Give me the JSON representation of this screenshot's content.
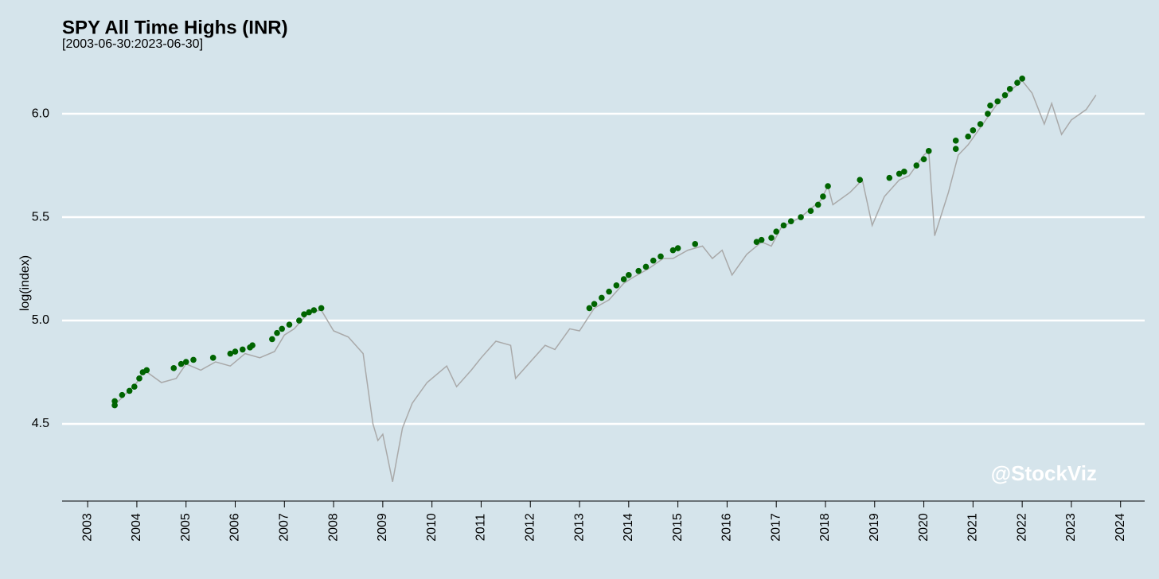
{
  "chart_data": {
    "type": "line",
    "title": "SPY All Time Highs (INR)",
    "subtitle": "[2003-06-30:2023-06-30]",
    "y_label": "log(index)",
    "watermark": "@StockViz",
    "grid": true,
    "xlim": [
      2002.48,
      2024.49
    ],
    "ylim": [
      4.127,
      6.204
    ],
    "xticks": [
      2003,
      2004,
      2005,
      2006,
      2007,
      2008,
      2009,
      2010,
      2011,
      2012,
      2013,
      2014,
      2015,
      2016,
      2017,
      2018,
      2019,
      2020,
      2021,
      2022,
      2023,
      2024
    ],
    "yticks": [
      {
        "value": 4.5,
        "label": "4.5"
      },
      {
        "value": 5.0,
        "label": "5.0"
      },
      {
        "value": 5.5,
        "label": "5.5"
      },
      {
        "value": 6.0,
        "label": "6.0"
      }
    ],
    "line": {
      "color": "#a9a9a9",
      "x": [
        2003.5,
        2003.75,
        2004.0,
        2004.15,
        2004.5,
        2004.8,
        2005.0,
        2005.3,
        2005.6,
        2005.9,
        2006.2,
        2006.5,
        2006.8,
        2007.0,
        2007.2,
        2007.5,
        2007.75,
        2008.0,
        2008.3,
        2008.6,
        2008.8,
        2008.9,
        2009.0,
        2009.2,
        2009.4,
        2009.6,
        2009.9,
        2010.3,
        2010.5,
        2010.8,
        2011.0,
        2011.3,
        2011.6,
        2011.7,
        2012.0,
        2012.3,
        2012.5,
        2012.8,
        2013.0,
        2013.3,
        2013.6,
        2013.9,
        2014.1,
        2014.4,
        2014.7,
        2014.9,
        2015.2,
        2015.5,
        2015.7,
        2015.9,
        2016.1,
        2016.4,
        2016.7,
        2016.9,
        2017.1,
        2017.5,
        2017.9,
        2018.05,
        2018.15,
        2018.5,
        2018.75,
        2018.95,
        2019.2,
        2019.5,
        2019.7,
        2020.0,
        2020.1,
        2020.22,
        2020.5,
        2020.7,
        2020.9,
        2021.2,
        2021.5,
        2021.8,
        2022.0,
        2022.2,
        2022.45,
        2022.6,
        2022.8,
        2023.0,
        2023.3,
        2023.5
      ],
      "values": [
        4.58,
        4.64,
        4.7,
        4.76,
        4.7,
        4.72,
        4.79,
        4.76,
        4.8,
        4.78,
        4.84,
        4.82,
        4.85,
        4.93,
        4.96,
        5.04,
        5.05,
        4.95,
        4.92,
        4.84,
        4.5,
        4.42,
        4.45,
        4.22,
        4.48,
        4.6,
        4.7,
        4.78,
        4.68,
        4.76,
        4.82,
        4.9,
        4.88,
        4.72,
        4.8,
        4.88,
        4.86,
        4.96,
        4.95,
        5.06,
        5.1,
        5.18,
        5.21,
        5.25,
        5.3,
        5.3,
        5.34,
        5.36,
        5.3,
        5.34,
        5.22,
        5.32,
        5.38,
        5.36,
        5.45,
        5.5,
        5.58,
        5.65,
        5.56,
        5.62,
        5.68,
        5.46,
        5.6,
        5.68,
        5.7,
        5.8,
        5.82,
        5.41,
        5.62,
        5.8,
        5.85,
        5.95,
        6.05,
        6.12,
        6.16,
        6.1,
        5.95,
        6.05,
        5.9,
        5.97,
        6.02,
        6.09
      ]
    },
    "highs": {
      "color": "#006400",
      "x": [
        2003.55,
        2003.55,
        2003.7,
        2003.85,
        2003.95,
        2004.05,
        2004.12,
        2004.2,
        2004.75,
        2004.9,
        2005.0,
        2005.15,
        2005.55,
        2005.9,
        2006.0,
        2006.15,
        2006.3,
        2006.35,
        2006.75,
        2006.85,
        2006.95,
        2007.1,
        2007.3,
        2007.4,
        2007.5,
        2007.6,
        2007.75,
        2013.2,
        2013.3,
        2013.45,
        2013.6,
        2013.75,
        2013.9,
        2014.0,
        2014.2,
        2014.35,
        2014.5,
        2014.65,
        2014.9,
        2015.0,
        2015.35,
        2016.6,
        2016.7,
        2016.9,
        2017.0,
        2017.15,
        2017.3,
        2017.5,
        2017.7,
        2017.85,
        2017.95,
        2018.05,
        2018.7,
        2019.3,
        2019.5,
        2019.6,
        2019.85,
        2020.0,
        2020.1,
        2020.65,
        2020.65,
        2020.9,
        2021.0,
        2021.15,
        2021.3,
        2021.35,
        2021.5,
        2021.65,
        2021.75,
        2021.9,
        2022.0
      ],
      "values": [
        4.59,
        4.61,
        4.64,
        4.66,
        4.68,
        4.72,
        4.75,
        4.76,
        4.77,
        4.79,
        4.8,
        4.81,
        4.82,
        4.84,
        4.85,
        4.86,
        4.87,
        4.88,
        4.91,
        4.94,
        4.96,
        4.98,
        5.0,
        5.03,
        5.04,
        5.05,
        5.06,
        5.06,
        5.08,
        5.11,
        5.14,
        5.17,
        5.2,
        5.22,
        5.24,
        5.26,
        5.29,
        5.31,
        5.34,
        5.35,
        5.37,
        5.38,
        5.39,
        5.4,
        5.43,
        5.46,
        5.48,
        5.5,
        5.53,
        5.56,
        5.6,
        5.65,
        5.68,
        5.69,
        5.71,
        5.72,
        5.75,
        5.78,
        5.82,
        5.83,
        5.87,
        5.89,
        5.92,
        5.95,
        6.0,
        6.04,
        6.06,
        6.09,
        6.12,
        6.15,
        6.17
      ]
    }
  }
}
